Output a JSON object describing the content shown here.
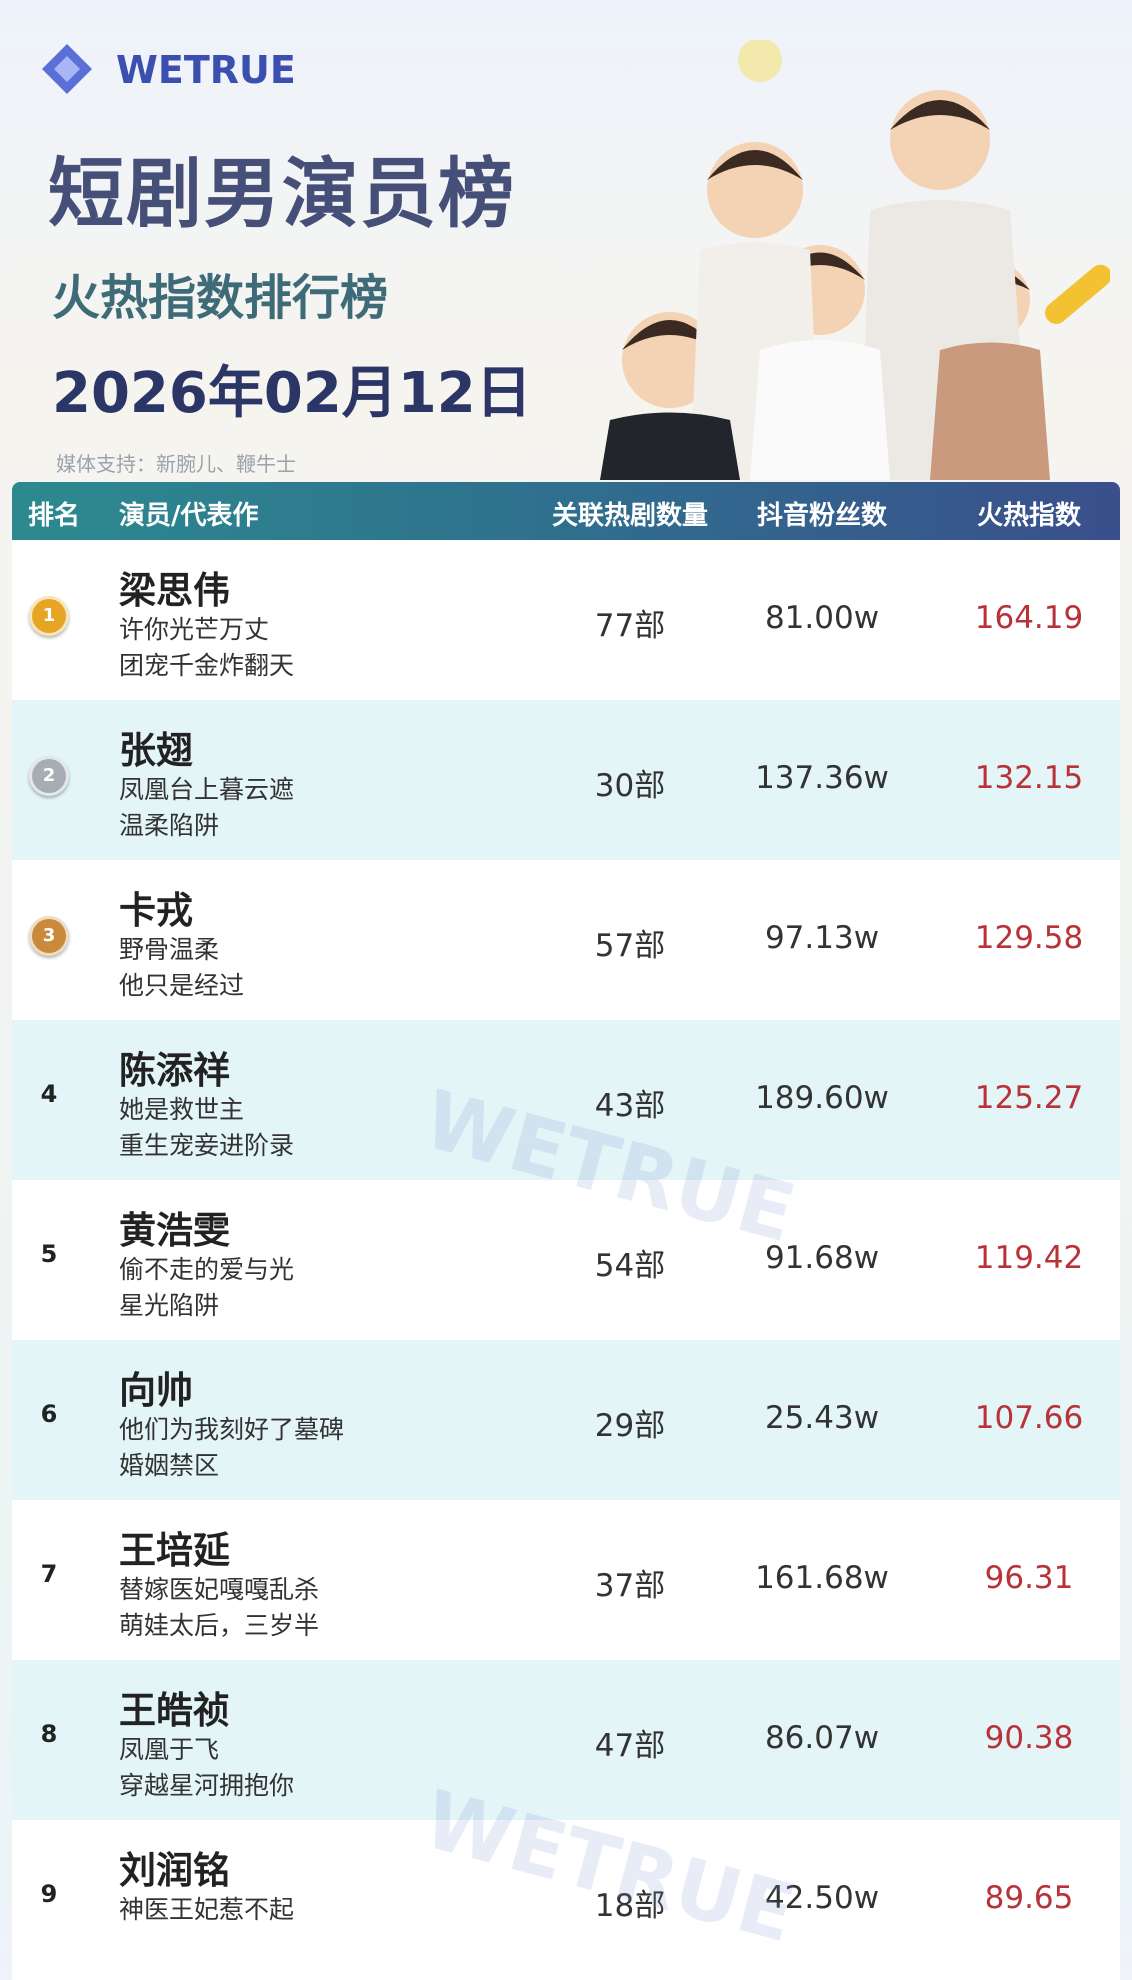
{
  "header": {
    "brand": "WETRUE",
    "title": "短剧男演员榜",
    "subtitle": "火热指数排行榜",
    "date": "2026年02月12日",
    "media": "媒体支持：新腕儿、鞭牛士"
  },
  "table": {
    "columns": [
      "排名",
      "演员/代表作",
      "关联热剧数量",
      "抖音粉丝数",
      "火热指数"
    ],
    "rows": [
      {
        "rank": "1",
        "name": "梁思伟",
        "works": [
          "许你光芒万丈",
          "团宠千金炸翻天"
        ],
        "dramas": "77部",
        "fans": "81.00w",
        "heat": "164.19"
      },
      {
        "rank": "2",
        "name": "张翅",
        "works": [
          "凤凰台上暮云遮",
          "温柔陷阱"
        ],
        "dramas": "30部",
        "fans": "137.36w",
        "heat": "132.15"
      },
      {
        "rank": "3",
        "name": "卡戎",
        "works": [
          "野骨温柔",
          "他只是经过"
        ],
        "dramas": "57部",
        "fans": "97.13w",
        "heat": "129.58"
      },
      {
        "rank": "4",
        "name": "陈添祥",
        "works": [
          "她是救世主",
          "重生宠妾进阶录"
        ],
        "dramas": "43部",
        "fans": "189.60w",
        "heat": "125.27"
      },
      {
        "rank": "5",
        "name": "黄浩雯",
        "works": [
          "偷不走的爱与光",
          "星光陷阱"
        ],
        "dramas": "54部",
        "fans": "91.68w",
        "heat": "119.42"
      },
      {
        "rank": "6",
        "name": "向帅",
        "works": [
          "他们为我刻好了墓碑",
          "婚姻禁区"
        ],
        "dramas": "29部",
        "fans": "25.43w",
        "heat": "107.66"
      },
      {
        "rank": "7",
        "name": "王培延",
        "works": [
          "替嫁医妃嘎嘎乱杀",
          "萌娃太后，三岁半"
        ],
        "dramas": "37部",
        "fans": "161.68w",
        "heat": "96.31"
      },
      {
        "rank": "8",
        "name": "王皓祯",
        "works": [
          "凤凰于飞",
          "穿越星河拥抱你"
        ],
        "dramas": "47部",
        "fans": "86.07w",
        "heat": "90.38"
      },
      {
        "rank": "9",
        "name": "刘润铭",
        "works": [
          "神医王妃惹不起"
        ],
        "dramas": "18部",
        "fans": "42.50w",
        "heat": "89.65"
      }
    ]
  },
  "watermark": "WETRUE"
}
